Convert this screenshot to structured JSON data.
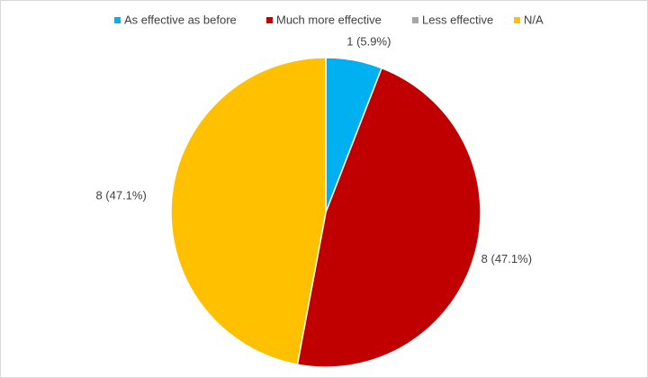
{
  "chart_data": {
    "type": "pie",
    "categories": [
      "As effective as before",
      "Much more effective",
      "Less effective",
      "N/A"
    ],
    "values": [
      1,
      8,
      0,
      8
    ],
    "value_labels": [
      "1 (5.9%)",
      "8 (47.1%)",
      null,
      "8 (47.1%)"
    ],
    "colors": [
      "#00b0f0",
      "#c00000",
      "#a5a5a5",
      "#ffc000"
    ],
    "legend": "top"
  }
}
